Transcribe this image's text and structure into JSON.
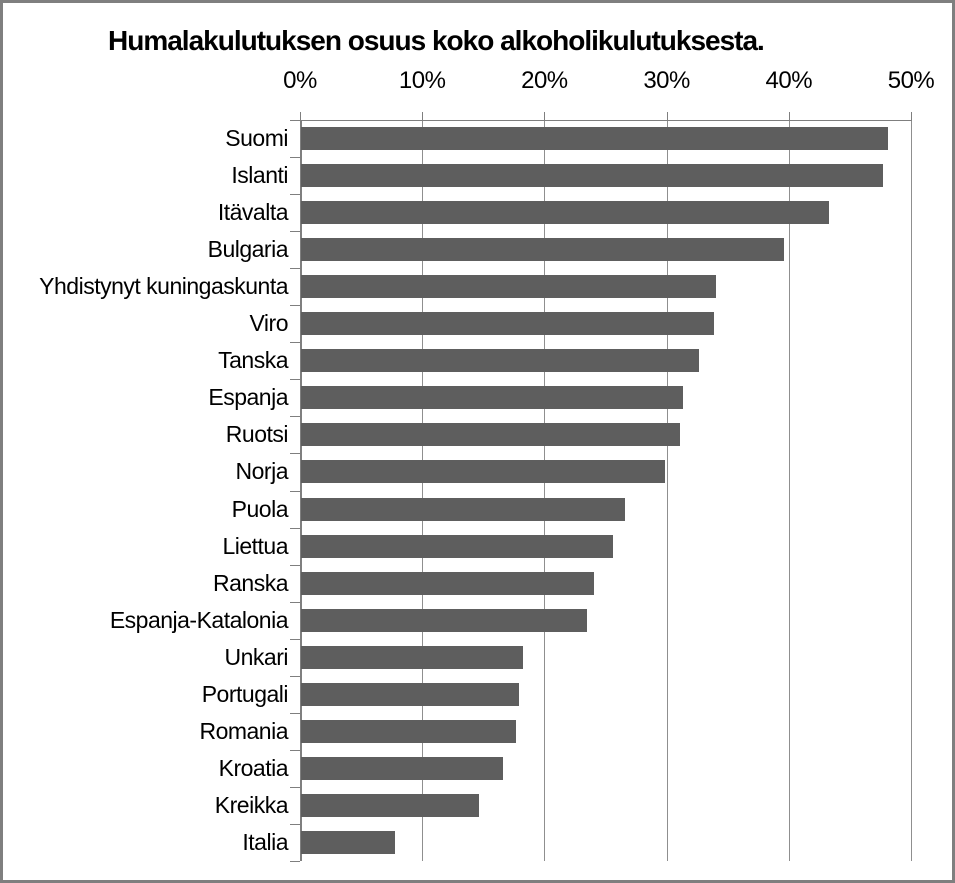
{
  "title": "Humalakulutuksen osuus koko alkoholikulutuksesta.",
  "chart_data": {
    "type": "bar",
    "orientation": "horizontal",
    "title": "Humalakulutuksen osuus koko alkoholikulutuksesta.",
    "xlabel": "",
    "ylabel": "",
    "xlim": [
      0,
      50
    ],
    "x_tick_labels": [
      "0%",
      "10%",
      "20%",
      "30%",
      "40%",
      "50%"
    ],
    "x_tick_values": [
      0,
      10,
      20,
      30,
      40,
      50
    ],
    "x_axis_position": "top",
    "grid": true,
    "legend": false,
    "categories": [
      "Suomi",
      "Islanti",
      "Itävalta",
      "Bulgaria",
      "Yhdistynyt kuningaskunta",
      "Viro",
      "Tanska",
      "Espanja",
      "Ruotsi",
      "Norja",
      "Puola",
      "Liettua",
      "Ranska",
      "Espanja-Katalonia",
      "Unkari",
      "Portugali",
      "Romania",
      "Kroatia",
      "Kreikka",
      "Italia"
    ],
    "values": [
      48,
      47.6,
      43.2,
      39.5,
      34,
      33.8,
      32.6,
      31.3,
      31,
      29.8,
      26.5,
      25.5,
      24,
      23.4,
      18.2,
      17.8,
      17.6,
      16.5,
      14.6,
      7.7
    ],
    "unit": "%",
    "bar_color": "#5e5e5e",
    "gridline_color": "#8f8f8f",
    "axis_color": "#7f7f7f",
    "frame_border_color": "#7f7f7f",
    "background_color": "#ffffff"
  }
}
